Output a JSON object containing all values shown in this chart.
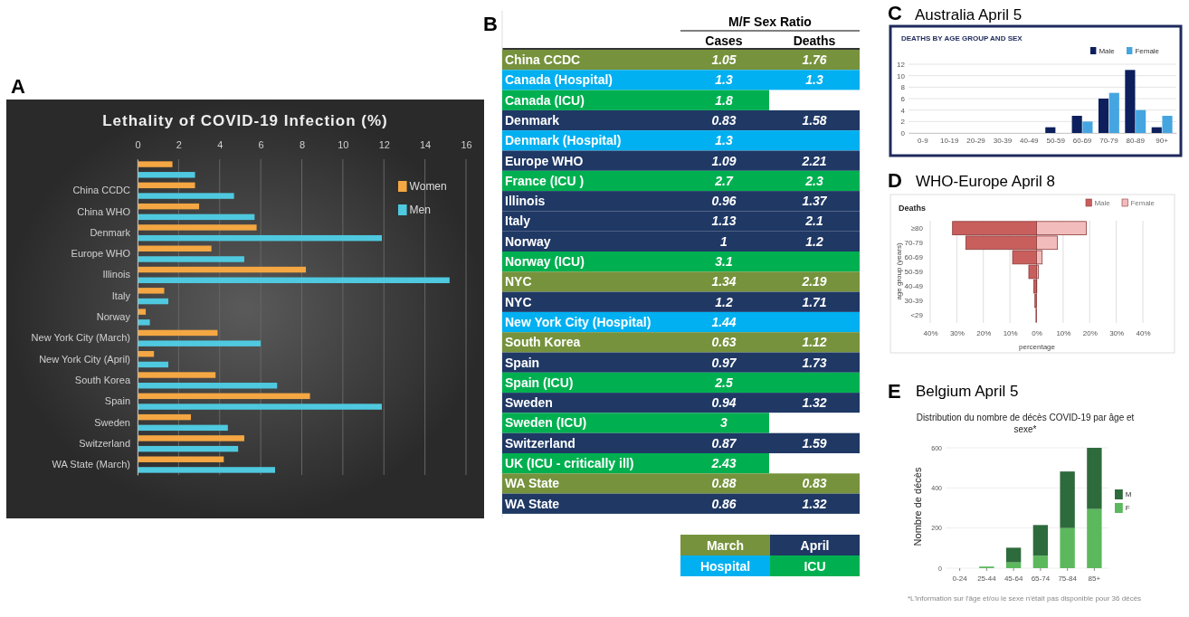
{
  "chart_data": [
    {
      "type": "bar",
      "orientation": "horizontal",
      "title": "Lethality of COVID-19 Infection (%)",
      "annotations": [
        "A"
      ],
      "categories": [
        null,
        "China CCDC",
        "China WHO",
        "Denmark",
        "Europe WHO",
        "Illinois",
        "Italy",
        "Norway",
        "New York City (March)",
        "New York City (April)",
        "South Korea",
        "Spain",
        "Sweden",
        "Switzerland",
        "WA State (March)"
      ],
      "series": [
        {
          "name": "Women",
          "color": "#f4a742",
          "values": [
            1.7,
            2.8,
            3.0,
            5.8,
            3.6,
            8.2,
            1.3,
            0.4,
            3.9,
            0.8,
            3.8,
            8.4,
            2.6,
            5.2,
            4.2
          ]
        },
        {
          "name": "Men",
          "color": "#4fc9df",
          "values": [
            2.8,
            4.7,
            5.7,
            11.9,
            5.2,
            15.2,
            1.5,
            0.6,
            6.0,
            1.5,
            6.8,
            11.9,
            4.4,
            4.9,
            6.7
          ]
        }
      ],
      "xlim": [
        0,
        16
      ],
      "xticks": [
        0,
        2,
        4,
        6,
        8,
        10,
        12,
        14,
        16
      ],
      "grid": "x",
      "legend": "top right"
    },
    {
      "type": "other",
      "title": "M/F Sex Ratio",
      "annotations": [
        "B",
        "March",
        "April",
        "Hospital",
        "ICU"
      ],
      "categories": [
        "China CCDC",
        "Canada (Hospital)",
        "Canada (ICU)",
        "Denmark",
        "Denmark (Hospital)",
        "Europe WHO",
        "France (ICU )",
        "Illinois",
        "Italy",
        "Norway",
        "Norway (ICU)",
        "NYC",
        "NYC",
        "New York City (Hospital)",
        "South Korea",
        "Spain",
        "Spain (ICU)",
        "Sweden",
        "Sweden (ICU)",
        "Switzerland",
        "UK (ICU - critically ill)",
        "WA State",
        "WA State"
      ],
      "series": [
        {
          "name": "Cases",
          "colors": [
            "#76923c",
            "#00b0f0",
            "#00b050",
            "#1f3864",
            "#00b0f0",
            "#1f3864",
            "#00b050",
            "#1f3864",
            "#1f3864",
            "#1f3864",
            "#00b050",
            "#76923c",
            "#1f3864",
            "#00b0f0",
            "#76923c",
            "#1f3864",
            "#00b050",
            "#1f3864",
            "#00b050",
            "#1f3864",
            "#00b050",
            "#76923c",
            "#1f3864"
          ],
          "values": [
            1.05,
            1.3,
            1.8,
            0.83,
            1.3,
            1.09,
            2.7,
            0.96,
            1.13,
            1,
            3.1,
            1.34,
            1.2,
            1.44,
            0.63,
            0.97,
            2.5,
            0.94,
            3,
            0.87,
            2.43,
            0.88,
            0.86
          ]
        },
        {
          "name": "Deaths",
          "colors": [
            "#76923c",
            "#00b0f0",
            "#ffffff",
            "#1f3864",
            "#00b0f0",
            "#1f3864",
            "#00b050",
            "#1f3864",
            "#1f3864",
            "#1f3864",
            "#00b050",
            "#76923c",
            "#1f3864",
            "#00b0f0",
            "#76923c",
            "#1f3864",
            "#00b050",
            "#1f3864",
            "#ffffff",
            "#1f3864",
            "#ffffff",
            "#76923c",
            "#1f3864"
          ],
          "values": [
            1.76,
            1.3,
            null,
            1.58,
            null,
            2.21,
            2.3,
            1.37,
            2.1,
            1.2,
            null,
            2.19,
            1.71,
            null,
            1.12,
            1.73,
            null,
            1.32,
            null,
            1.59,
            null,
            0.83,
            1.32
          ]
        }
      ],
      "data_labels": true
    },
    {
      "type": "bar",
      "title": "Australia April 5",
      "subtitle": "DEATHS BY AGE GROUP AND SEX",
      "annotations": [
        "C"
      ],
      "categories": [
        "0-9",
        "10-19",
        "20-29",
        "30-39",
        "40-49",
        "50-59",
        "60-69",
        "70-79",
        "80-89",
        "90+"
      ],
      "series": [
        {
          "name": "Male",
          "color": "#0d1f5c",
          "values": [
            0,
            0,
            0,
            0,
            0,
            1,
            3,
            6,
            11,
            1
          ]
        },
        {
          "name": "Female",
          "color": "#45a5e0",
          "values": [
            0,
            0,
            0,
            0,
            0,
            0,
            2,
            7,
            4,
            3
          ]
        }
      ],
      "ylim": [
        0,
        12
      ],
      "yticks": [
        0,
        2,
        4,
        6,
        8,
        10,
        12
      ],
      "grid": "y",
      "legend": "top right"
    },
    {
      "type": "bar",
      "orientation": "horizontal",
      "stacked": true,
      "title": "WHO-Europe April 8",
      "subtitle": "Deaths",
      "xlabel": "percentage",
      "ylabel": "age group (years)",
      "annotations": [
        "D"
      ],
      "categories": [
        "≥80",
        "70-79",
        "60-69",
        "50-59",
        "40-49",
        "30-39",
        "<29"
      ],
      "series": [
        {
          "name": "Male",
          "color": "#c95f5c",
          "values": [
            -31.6,
            -26.6,
            -9.0,
            -2.9,
            -1.0,
            -0.6,
            -0.2
          ]
        },
        {
          "name": "Female",
          "color": "#f2bcbc",
          "values": [
            18.7,
            7.8,
            2.1,
            0.7,
            0.1,
            0,
            0
          ]
        }
      ],
      "xlim": [
        -40,
        40
      ],
      "xticks": [
        {
          "value": -40,
          "label": "40%"
        },
        {
          "value": -30,
          "label": "30%"
        },
        {
          "value": -20,
          "label": "20%"
        },
        {
          "value": -10,
          "label": "10%"
        },
        {
          "value": 0,
          "label": "0%"
        },
        {
          "value": 10,
          "label": "10%"
        },
        {
          "value": 20,
          "label": "20%"
        },
        {
          "value": 30,
          "label": "30%"
        },
        {
          "value": 40,
          "label": "40%"
        }
      ],
      "grid": "x",
      "legend": "top right"
    },
    {
      "type": "bar",
      "stacked": true,
      "title": "Belgium April 5",
      "subtitle": "Distribution du nombre de décès COVID-19 par âge et sexe*",
      "ylabel": "Nombre de décès",
      "annotations": [
        "E",
        "*L'information sur l'âge et/ou le sexe n'était pas disponible pour 36 décès"
      ],
      "categories": [
        "0-24",
        "25-44",
        "45-64",
        "65-74",
        "75-84",
        "85+"
      ],
      "series": [
        {
          "name": "F",
          "color": "#5cb85c",
          "values": [
            0,
            8,
            29,
            62,
            200,
            295
          ]
        },
        {
          "name": "M",
          "color": "#2e6b3c",
          "values": [
            null,
            null,
            73,
            153,
            282,
            305
          ]
        }
      ],
      "ylim": [
        0,
        600
      ],
      "yticks": [
        0,
        200,
        400,
        600
      ],
      "grid": "y",
      "legend": "right"
    }
  ]
}
